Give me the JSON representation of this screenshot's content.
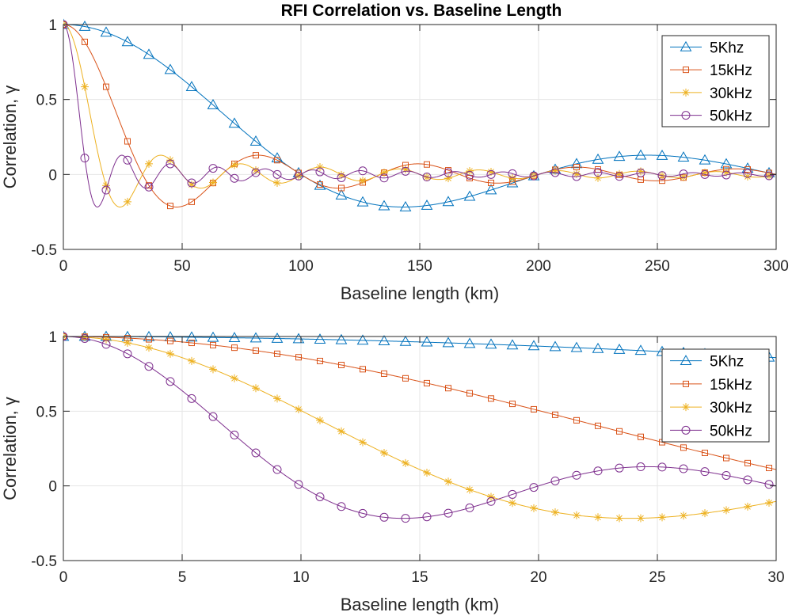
{
  "figure_title": "RFI Correlation vs. Baseline Length",
  "chart_data": [
    {
      "type": "line",
      "title": "RFI Correlation vs. Baseline Length",
      "xlabel": "Baseline length (km)",
      "ylabel": "Correlation, γ",
      "xlim": [
        0,
        300
      ],
      "ylim": [
        -0.5,
        1
      ],
      "xticks": [
        0,
        50,
        100,
        150,
        200,
        250,
        300
      ],
      "xtick_labels": [
        "0",
        "50",
        "100",
        "150",
        "200",
        "250",
        "300"
      ],
      "yticks": [
        -0.5,
        0,
        0.5,
        1
      ],
      "ytick_labels": [
        "-0.5",
        "0",
        "0.5",
        "1"
      ],
      "grid": true,
      "legend_position": "top-right",
      "series": [
        {
          "name": "5Khz",
          "color": "#0072BD",
          "marker": "triangle",
          "bandwidth_khz": 5
        },
        {
          "name": "15kHz",
          "color": "#D95319",
          "marker": "square",
          "bandwidth_khz": 15
        },
        {
          "name": "30kHz",
          "color": "#EDB120",
          "marker": "asterisk",
          "bandwidth_khz": 30
        },
        {
          "name": "50kHz",
          "color": "#7E2F8E",
          "marker": "circle",
          "bandwidth_khz": 50
        }
      ]
    },
    {
      "type": "line",
      "title": "",
      "xlabel": "Baseline length (km)",
      "ylabel": "Correlation, γ",
      "xlim": [
        0,
        30
      ],
      "ylim": [
        -0.5,
        1
      ],
      "xticks": [
        0,
        5,
        10,
        15,
        20,
        25,
        30
      ],
      "xtick_labels": [
        "0",
        "5",
        "10",
        "15",
        "20",
        "25",
        "30"
      ],
      "yticks": [
        -0.5,
        0,
        0.5,
        1
      ],
      "ytick_labels": [
        "-0.5",
        "0",
        "0.5",
        "1"
      ],
      "grid": true,
      "legend_position": "top-right",
      "series": [
        {
          "name": "5Khz",
          "color": "#0072BD",
          "marker": "triangle",
          "bandwidth_khz": 5
        },
        {
          "name": "15kHz",
          "color": "#D95319",
          "marker": "square",
          "bandwidth_khz": 15
        },
        {
          "name": "30kHz",
          "color": "#EDB120",
          "marker": "asterisk",
          "bandwidth_khz": 30
        },
        {
          "name": "50kHz",
          "color": "#7E2F8E",
          "marker": "circle",
          "bandwidth_khz": 50
        }
      ]
    }
  ],
  "model": {
    "function": "sinc",
    "x_scale_per_khz": 0.002,
    "marker_spacing": [
      9,
      0.9
    ]
  }
}
